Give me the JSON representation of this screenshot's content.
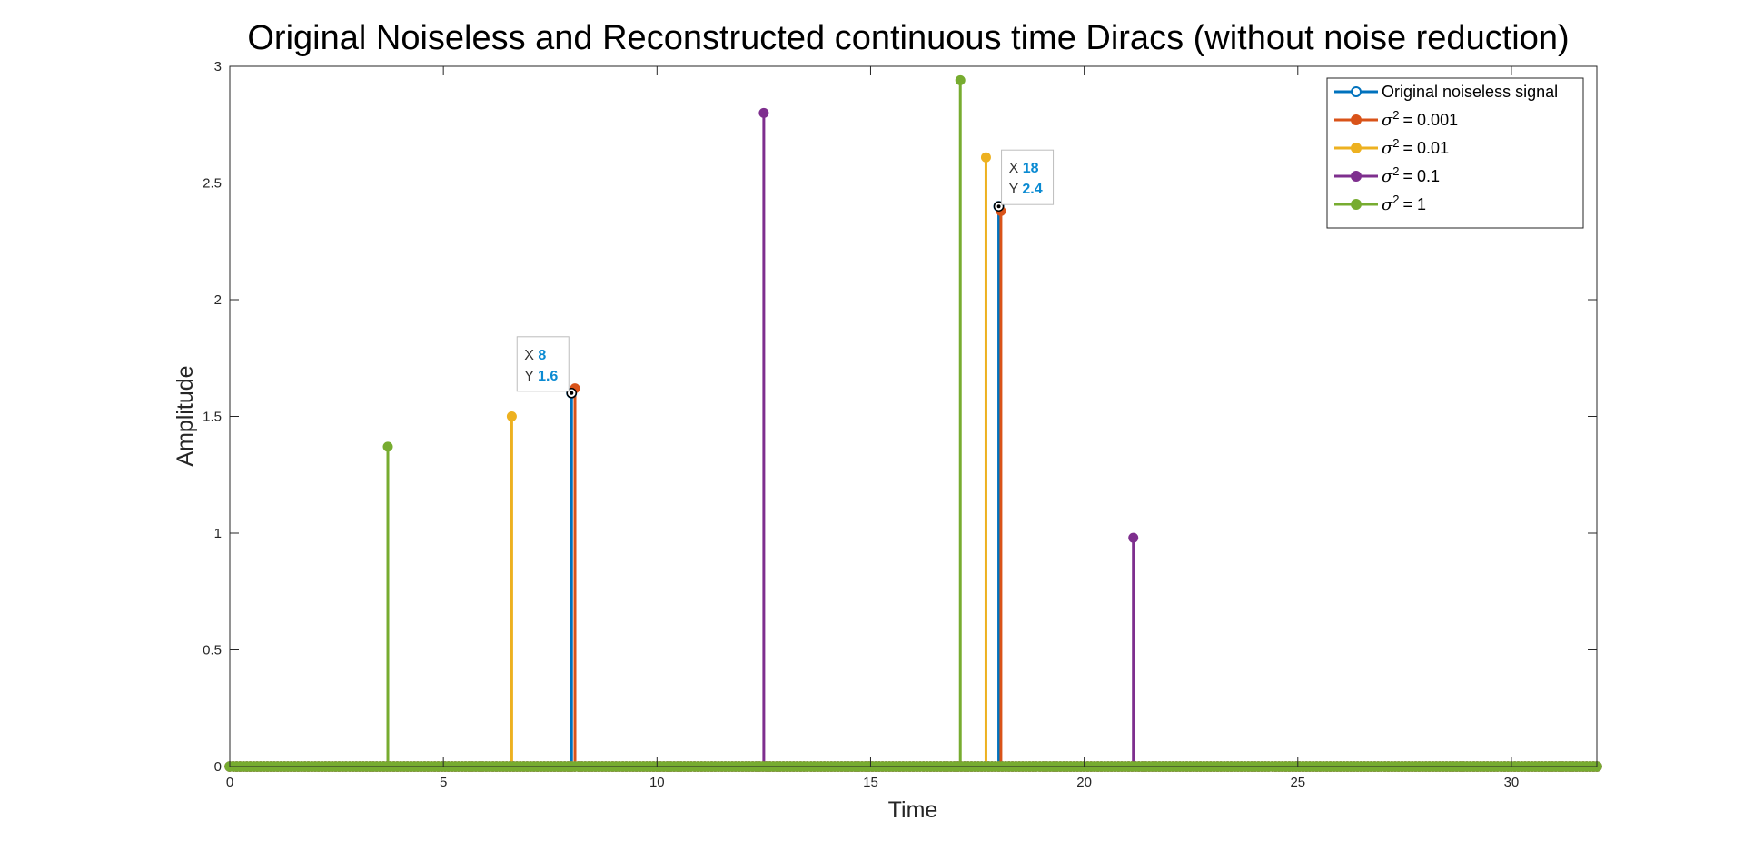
{
  "chart_data": {
    "type": "stem",
    "title": "Original Noiseless and Reconstructed continuous time Diracs (without noise reduction)",
    "xlabel": "Time",
    "ylabel": "Amplitude",
    "xlim": [
      0,
      32
    ],
    "ylim": [
      0,
      3
    ],
    "xticks": [
      0,
      5,
      10,
      15,
      20,
      25,
      30
    ],
    "yticks": [
      0,
      0.5,
      1,
      1.5,
      2,
      2.5,
      3
    ],
    "xtick_labels": [
      "0",
      "5",
      "10",
      "15",
      "20",
      "25",
      "30"
    ],
    "ytick_labels": [
      "0",
      "0.5",
      "1",
      "1.5",
      "2",
      "2.5",
      "3"
    ],
    "grid": false,
    "legend_position": "top-right",
    "series": [
      {
        "name": "Original noiseless signal",
        "sigma2": null,
        "color": "#0072BD",
        "marker": "open-circle",
        "x": [
          8,
          18
        ],
        "y": [
          1.6,
          2.4
        ]
      },
      {
        "name": "= 0.001",
        "sigma2": "0.001",
        "color": "#D95319",
        "marker": "filled-circle",
        "x": [
          8.08,
          18.05
        ],
        "y": [
          1.62,
          2.38
        ]
      },
      {
        "name": "= 0.01",
        "sigma2": "0.01",
        "color": "#EDB120",
        "marker": "filled-circle",
        "x": [
          6.6,
          17.7
        ],
        "y": [
          1.5,
          2.61
        ]
      },
      {
        "name": "= 0.1",
        "sigma2": "0.1",
        "color": "#7E2F8E",
        "marker": "filled-circle",
        "x": [
          12.5,
          21.15
        ],
        "y": [
          2.8,
          0.98
        ]
      },
      {
        "name": "= 1",
        "sigma2": "1",
        "color": "#77AC30",
        "marker": "filled-circle",
        "x": [
          3.7,
          17.1
        ],
        "y": [
          1.37,
          2.94
        ]
      }
    ],
    "datatips": [
      {
        "x_label": "X",
        "x_value": "8",
        "y_label": "Y",
        "y_value": "1.6",
        "x": 8,
        "y": 1.6
      },
      {
        "x_label": "X",
        "x_value": "18",
        "y_label": "Y",
        "y_value": "2.4",
        "x": 18,
        "y": 2.4
      }
    ],
    "legend_symbol": "σ",
    "legend_superscript": "2"
  }
}
